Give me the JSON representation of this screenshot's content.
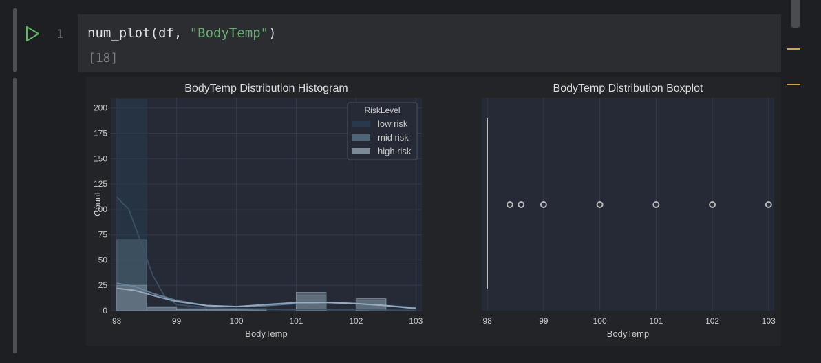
{
  "editor": {
    "line_number": "1",
    "code_func": "num_plot(df, ",
    "code_arg": "\"BodyTemp\"",
    "code_close": ")",
    "exec_count": "[18]",
    "run_icon": "play-icon",
    "colors": {
      "accent_green": "#6aab73",
      "marker": "#d9a343",
      "run_icon": "#5fb865"
    }
  },
  "chart_data": [
    {
      "type": "histogram",
      "title": "BodyTemp Distribution Histogram",
      "xlabel": "BodyTemp",
      "ylabel": "Count",
      "xlim": [
        97.9,
        103.1
      ],
      "ylim": [
        0,
        210
      ],
      "xticks": [
        "98",
        "99",
        "100",
        "101",
        "102",
        "103"
      ],
      "yticks": [
        "0",
        "25",
        "50",
        "75",
        "100",
        "125",
        "150",
        "175",
        "200"
      ],
      "grid": true,
      "legend_title": "RiskLevel",
      "legend_position": "top-right",
      "bin_edges": [
        98.0,
        98.5,
        99.0,
        99.5,
        100.0,
        100.5,
        101.0,
        101.5,
        102.0,
        102.5,
        103.0
      ],
      "series": [
        {
          "name": "low risk",
          "color": "#273a4d",
          "counts": [
            208,
            3,
            3,
            2,
            1,
            0,
            0,
            0,
            0,
            1
          ]
        },
        {
          "name": "mid risk",
          "color": "#4e6678",
          "counts": [
            70,
            4,
            2,
            1,
            2,
            0,
            15,
            0,
            10,
            0
          ]
        },
        {
          "name": "high risk",
          "color": "#7c8a98",
          "counts": [
            25,
            3,
            1,
            1,
            1,
            0,
            18,
            0,
            12,
            0
          ]
        }
      ],
      "kde": [
        {
          "name": "low risk",
          "x": [
            98.0,
            98.2,
            98.4,
            98.6,
            98.8,
            99.0,
            99.5,
            100.0,
            101.0,
            102.0,
            103.0
          ],
          "y": [
            112,
            100,
            68,
            35,
            14,
            6,
            3,
            2,
            1,
            1,
            0
          ]
        },
        {
          "name": "mid risk",
          "x": [
            98.0,
            98.3,
            98.6,
            99.0,
            99.5,
            100.0,
            100.5,
            101.0,
            101.5,
            102.0,
            102.5,
            103.0
          ],
          "y": [
            27,
            24,
            17,
            10,
            5,
            4,
            5,
            7,
            8,
            7,
            5,
            3
          ]
        },
        {
          "name": "high risk",
          "x": [
            98.0,
            98.3,
            98.6,
            99.0,
            99.5,
            100.0,
            100.5,
            101.0,
            101.5,
            102.0,
            102.5,
            103.0
          ],
          "y": [
            22,
            20,
            15,
            9,
            5,
            4,
            6,
            8,
            8,
            7,
            5,
            2
          ]
        }
      ]
    },
    {
      "type": "boxplot",
      "title": "BodyTemp Distribution Boxplot",
      "xlabel": "BodyTemp",
      "xlim": [
        97.9,
        103.1
      ],
      "xticks": [
        "98",
        "99",
        "100",
        "101",
        "102",
        "103"
      ],
      "grid": true,
      "median": 98,
      "q1": 98,
      "q3": 98,
      "outliers": [
        98.4,
        98.6,
        99,
        100,
        101,
        102,
        103
      ]
    }
  ]
}
